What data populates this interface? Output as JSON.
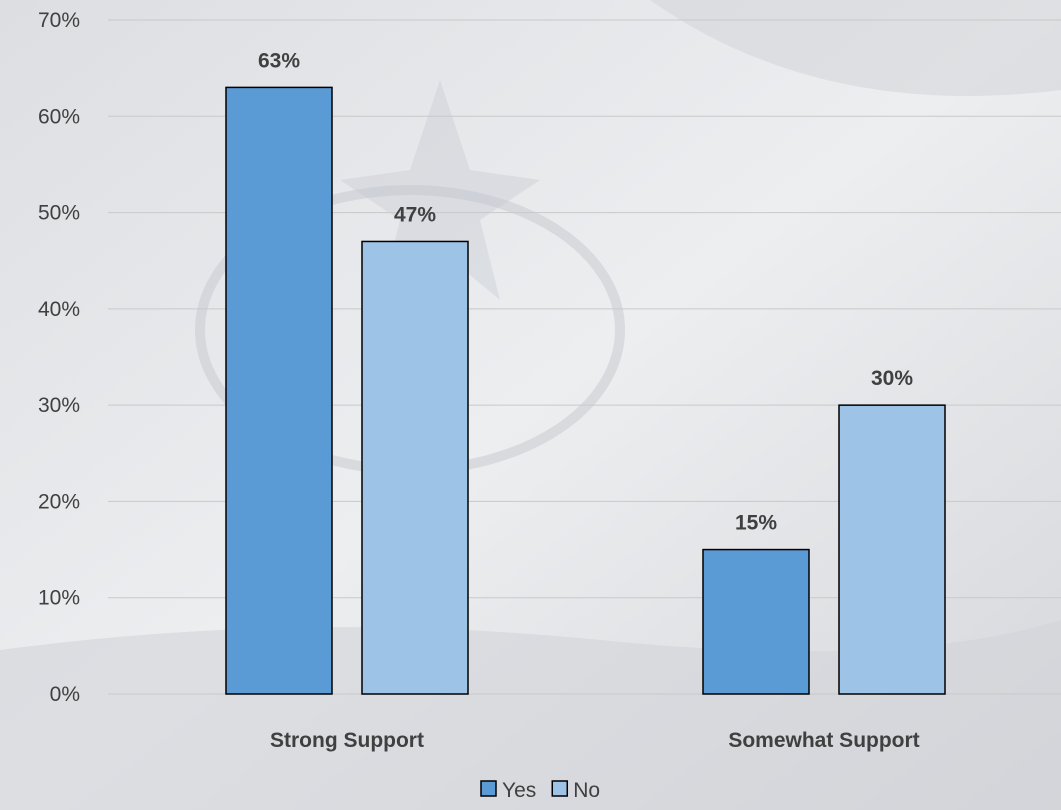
{
  "chart_data": {
    "type": "bar",
    "categories": [
      "Strong Support",
      "Somewhat Support"
    ],
    "series": [
      {
        "name": "Yes",
        "values": [
          63,
          15
        ],
        "color": "#5b9bd5"
      },
      {
        "name": "No",
        "values": [
          47,
          30
        ],
        "color": "#9dc3e6"
      }
    ],
    "data_labels": [
      [
        "63%",
        "15%"
      ],
      [
        "47%",
        "30%"
      ]
    ],
    "y_ticks": [
      "0%",
      "10%",
      "20%",
      "30%",
      "40%",
      "50%",
      "60%",
      "70%"
    ],
    "ylim": [
      0,
      70
    ],
    "grid": true,
    "legend_position": "bottom",
    "bar_outline_color": "#000000",
    "gridline_color": "#c9c9c9"
  }
}
